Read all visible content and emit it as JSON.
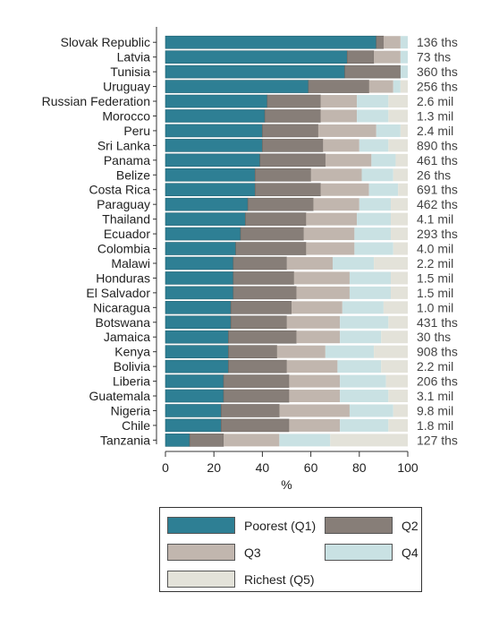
{
  "chart_data": {
    "type": "bar",
    "orientation": "horizontal",
    "stacked": true,
    "xlabel": "%",
    "xlim": [
      0,
      100
    ],
    "xticks": [
      0,
      20,
      40,
      60,
      80,
      100
    ],
    "grid": false,
    "legend_position": "bottom",
    "categories": [
      "Slovak Republic",
      "Latvia",
      "Tunisia",
      "Uruguay",
      "Russian Federation",
      "Morocco",
      "Peru",
      "Sri Lanka",
      "Panama",
      "Belize",
      "Costa Rica",
      "Paraguay",
      "Thailand",
      "Ecuador",
      "Colombia",
      "Malawi",
      "Honduras",
      "El Salvador",
      "Nicaragua",
      "Botswana",
      "Jamaica",
      "Kenya",
      "Bolivia",
      "Liberia",
      "Guatemala",
      "Nigeria",
      "Chile",
      "Tanzania"
    ],
    "annotations": [
      "136 ths",
      "73 ths",
      "360 ths",
      "256 ths",
      "2.6 mil",
      "1.3 mil",
      "2.4 mil",
      "890 ths",
      "461 ths",
      "26 ths",
      "691 ths",
      "462 ths",
      "4.1 mil",
      "293 ths",
      "4.0 mil",
      "2.2 mil",
      "1.5 mil",
      "1.5 mil",
      "1.0 mil",
      "431 ths",
      "30 ths",
      "908 ths",
      "2.2 mil",
      "206 ths",
      "3.1 mil",
      "9.8 mil",
      "1.8 mil",
      "127 ths"
    ],
    "series": [
      {
        "name": "Poorest (Q1)",
        "color": "#2e7f94",
        "values": [
          87,
          75,
          74,
          59,
          42,
          41,
          40,
          40,
          39,
          37,
          37,
          34,
          33,
          31,
          29,
          28,
          28,
          28,
          27,
          27,
          26,
          26,
          26,
          24,
          24,
          23,
          23,
          10
        ]
      },
      {
        "name": "Q2",
        "color": "#877e78",
        "values": [
          3,
          11,
          23,
          25,
          22,
          23,
          23,
          25,
          27,
          23,
          27,
          27,
          25,
          26,
          29,
          22,
          25,
          26,
          25,
          23,
          28,
          20,
          24,
          27,
          27,
          24,
          28,
          14
        ]
      },
      {
        "name": "Q3",
        "color": "#c1b6ae",
        "values": [
          7,
          11,
          0,
          10,
          15,
          15,
          24,
          15,
          19,
          21,
          20,
          19,
          21,
          21,
          20,
          19,
          23,
          22,
          21,
          22,
          18,
          20,
          21,
          21,
          21,
          29,
          21,
          23
        ]
      },
      {
        "name": "Q4",
        "color": "#c9e1e3",
        "values": [
          3,
          3,
          3,
          3,
          13,
          13,
          10,
          12,
          10,
          13,
          12,
          13,
          14,
          15,
          16,
          17,
          17,
          17,
          17,
          20,
          17,
          20,
          18,
          19,
          20,
          18,
          20,
          21
        ]
      },
      {
        "name": "Richest (Q5)",
        "color": "#e3e2d9",
        "values": [
          0,
          0,
          0,
          3,
          8,
          8,
          3,
          8,
          5,
          6,
          4,
          7,
          7,
          7,
          6,
          14,
          7,
          7,
          10,
          8,
          11,
          14,
          11,
          9,
          8,
          6,
          8,
          32
        ]
      }
    ]
  }
}
